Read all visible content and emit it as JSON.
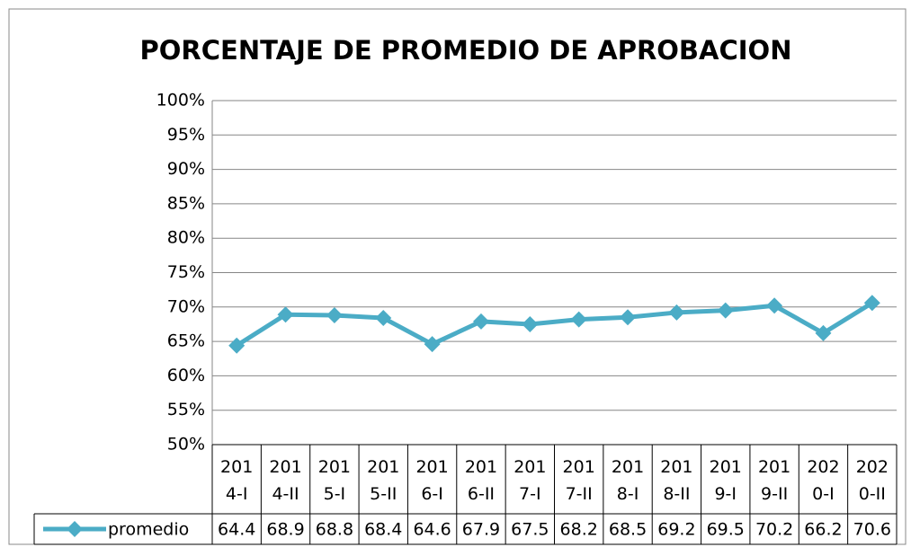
{
  "chart_data": {
    "type": "line",
    "title": "PORCENTAJE DE PROMEDIO DE APROBACION",
    "categories": [
      "2014-I",
      "2014-II",
      "2015-I",
      "2015-II",
      "2016-I",
      "2016-II",
      "2017-I",
      "2017-II",
      "2018-I",
      "2018-II",
      "2019-I",
      "2019-II",
      "2020-I",
      "2020-II"
    ],
    "series": [
      {
        "name": "promedio",
        "color": "#4bacc6",
        "values": [
          64.4,
          68.9,
          68.8,
          68.4,
          64.6,
          67.9,
          67.5,
          68.2,
          68.5,
          69.2,
          69.5,
          70.2,
          66.2,
          70.6
        ]
      }
    ],
    "ylim": [
      50,
      100
    ],
    "yticks": [
      {
        "value": 50,
        "label": "50%"
      },
      {
        "value": 55,
        "label": "55%"
      },
      {
        "value": 60,
        "label": "60%"
      },
      {
        "value": 65,
        "label": "65%"
      },
      {
        "value": 70,
        "label": "70%"
      },
      {
        "value": 75,
        "label": "75%"
      },
      {
        "value": 80,
        "label": "80%"
      },
      {
        "value": 85,
        "label": "85%"
      },
      {
        "value": 90,
        "label": "90%"
      },
      {
        "value": 95,
        "label": "95%"
      },
      {
        "value": 100,
        "label": "100%"
      }
    ],
    "grid": true
  }
}
